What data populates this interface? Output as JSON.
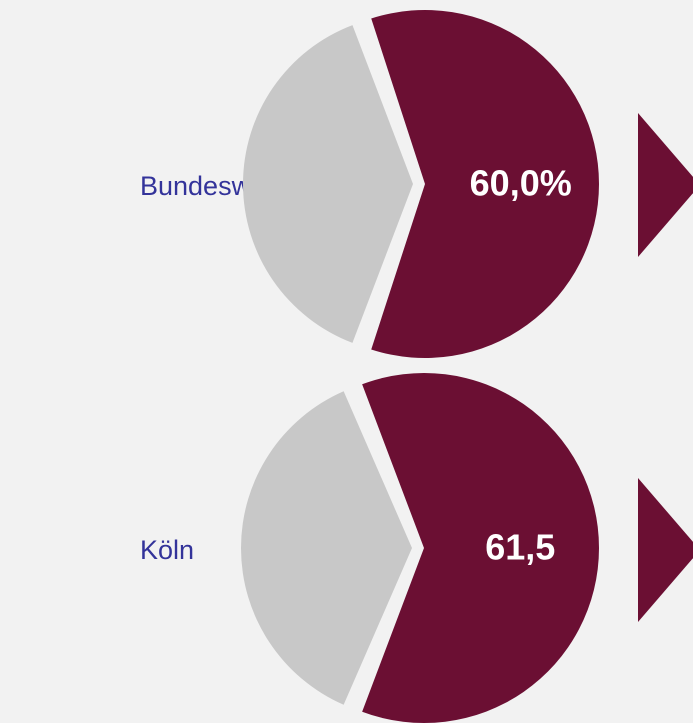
{
  "chart_data": [
    {
      "type": "pie",
      "title": "Bundesweit",
      "values": [
        60,
        40
      ],
      "value_labels": [
        "60,0%",
        null
      ],
      "colors": [
        "#6b0f33",
        "#c8c8c8"
      ]
    },
    {
      "type": "pie",
      "title": "Köln",
      "values": [
        61.5,
        38.5
      ],
      "value_labels": [
        "61,5",
        null
      ],
      "colors": [
        "#6b0f33",
        "#c8c8c8"
      ]
    }
  ]
}
